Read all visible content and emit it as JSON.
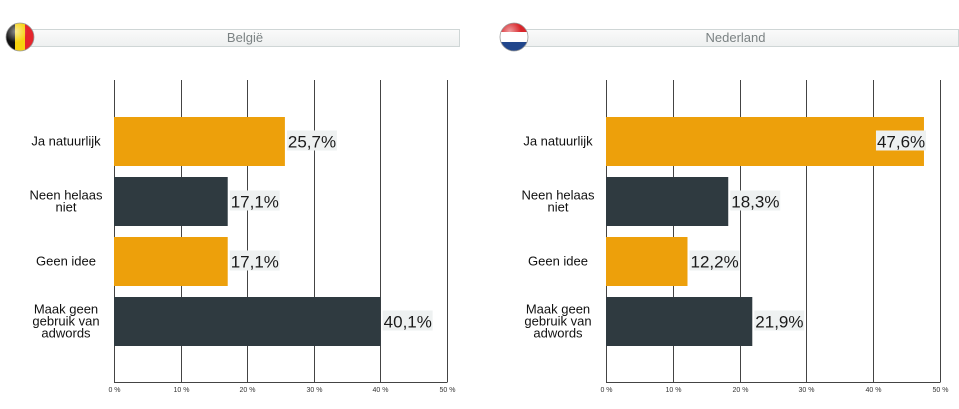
{
  "colors": {
    "orange": "#EDA00B",
    "dark": "#2F3A40",
    "grid": "#444444",
    "label_bg": "#EEF1F1"
  },
  "panels": [
    {
      "title": "België",
      "flag_icon": "belgium-flag-icon"
    },
    {
      "title": "Nederland",
      "flag_icon": "netherlands-flag-icon"
    }
  ],
  "chart_data": [
    {
      "type": "bar",
      "orientation": "horizontal",
      "title": "België",
      "categories": [
        [
          "Ja natuurlijk"
        ],
        [
          "Neen helaas",
          "niet"
        ],
        [
          "Geen idee"
        ],
        [
          "Maak geen",
          "gebruik van",
          "adwords"
        ]
      ],
      "values": [
        25.7,
        17.1,
        17.1,
        40.1
      ],
      "value_labels": [
        "25,7%",
        "17,1%",
        "17,1%",
        "40,1%"
      ],
      "bar_colors": [
        "#EDA00B",
        "#2F3A40",
        "#EDA00B",
        "#2F3A40"
      ],
      "xlim": [
        0,
        50
      ],
      "x_ticks": [
        "0 %",
        "10 %",
        "20 %",
        "30 %",
        "40 %",
        "50 %"
      ],
      "grid": true
    },
    {
      "type": "bar",
      "orientation": "horizontal",
      "title": "Nederland",
      "categories": [
        [
          "Ja natuurlijk"
        ],
        [
          "Neen helaas",
          "niet"
        ],
        [
          "Geen idee"
        ],
        [
          "Maak geen",
          "gebruik van",
          "adwords"
        ]
      ],
      "values": [
        47.6,
        18.3,
        12.2,
        21.9
      ],
      "value_labels": [
        "47,6%",
        "18,3%",
        "12,2%",
        "21,9%"
      ],
      "bar_colors": [
        "#EDA00B",
        "#2F3A40",
        "#EDA00B",
        "#2F3A40"
      ],
      "xlim": [
        0,
        50
      ],
      "x_ticks": [
        "0 %",
        "10 %",
        "20 %",
        "30 %",
        "40 %",
        "50 %"
      ],
      "grid": true
    }
  ]
}
